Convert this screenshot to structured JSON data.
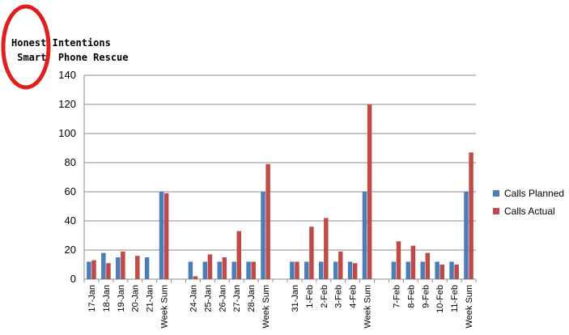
{
  "logo": {
    "line1_left": "Honest",
    "line1_right": "Intentions",
    "line2_left": "Smart",
    "line2_right": "Phone Rescue"
  },
  "chart_data": {
    "type": "bar",
    "title": "",
    "xlabel": "",
    "ylabel": "",
    "ylim": [
      0,
      140
    ],
    "yticks": [
      0,
      20,
      40,
      60,
      80,
      100,
      120,
      140
    ],
    "grid": true,
    "legend_position": "right",
    "categories": [
      "17-Jan",
      "18-Jan",
      "19-Jan",
      "20-Jan",
      "21-Jan",
      "Week Sum",
      "",
      "24-Jan",
      "25-Jan",
      "26-Jan",
      "27-Jan",
      "28-Jan",
      "Week Sum",
      "",
      "31-Jan",
      "1-Feb",
      "2-Feb",
      "3-Feb",
      "4-Feb",
      "Week Sum",
      "",
      "7-Feb",
      "8-Feb",
      "9-Feb",
      "10-Feb",
      "11-Feb",
      "Week Sum"
    ],
    "series": [
      {
        "name": "Calls Planned",
        "color": "#4a7ebb",
        "values": [
          12,
          18,
          15,
          null,
          15,
          60,
          null,
          12,
          12,
          12,
          12,
          12,
          60,
          null,
          12,
          12,
          12,
          12,
          12,
          60,
          null,
          12,
          12,
          12,
          12,
          12,
          60
        ]
      },
      {
        "name": "Calls Actual",
        "color": "#be4b48",
        "values": [
          13,
          11,
          19,
          16,
          null,
          59,
          null,
          2,
          17,
          15,
          33,
          12,
          79,
          null,
          12,
          36,
          42,
          19,
          11,
          120,
          null,
          26,
          23,
          18,
          10,
          10,
          87
        ]
      }
    ]
  }
}
